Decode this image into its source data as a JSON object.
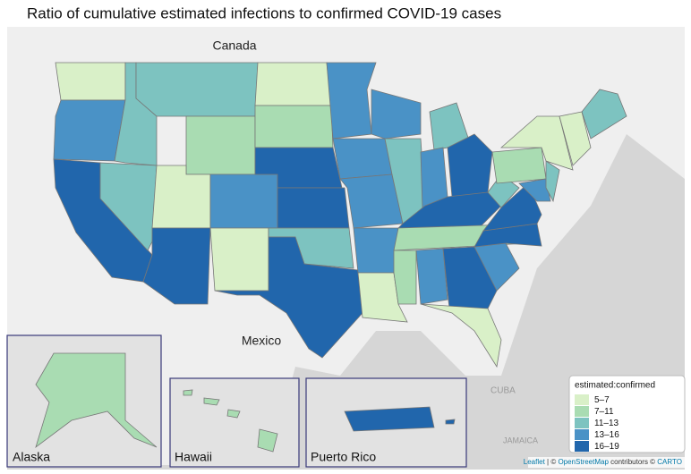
{
  "title": "Ratio of cumulative estimated infections to confirmed COVID-19 cases",
  "places": {
    "canada": "Canada",
    "mexico": "Mexico",
    "cuba": "CUBA",
    "jamaica": "JAMAICA"
  },
  "insets": {
    "alaska": "Alaska",
    "hawaii": "Hawaii",
    "puerto_rico": "Puerto Rico"
  },
  "legend": {
    "title": "estimated:confirmed",
    "items": [
      {
        "label": "5–7",
        "color": "#d9f0c8"
      },
      {
        "label": "7–11",
        "color": "#a9dcb2"
      },
      {
        "label": "11–13",
        "color": "#7dc3c0"
      },
      {
        "label": "13–16",
        "color": "#4a92c6"
      },
      {
        "label": "16–19",
        "color": "#2166ac"
      }
    ]
  },
  "region_class": [
    0,
    3,
    4,
    2,
    2,
    2,
    1,
    0,
    4,
    3,
    0,
    0,
    1,
    4,
    4,
    2,
    4,
    3,
    3,
    3,
    3,
    0,
    3,
    2,
    1,
    2,
    3,
    4,
    4,
    1,
    3,
    4,
    0,
    3,
    4,
    4,
    2,
    1,
    0,
    3,
    2,
    0,
    2,
    1,
    1,
    4
  ],
  "attribution": {
    "leaflet": "Leaflet",
    "sep1": " | © ",
    "osm": "OpenStreetMap",
    "sep2": " contributors © ",
    "carto": "CARTO"
  }
}
